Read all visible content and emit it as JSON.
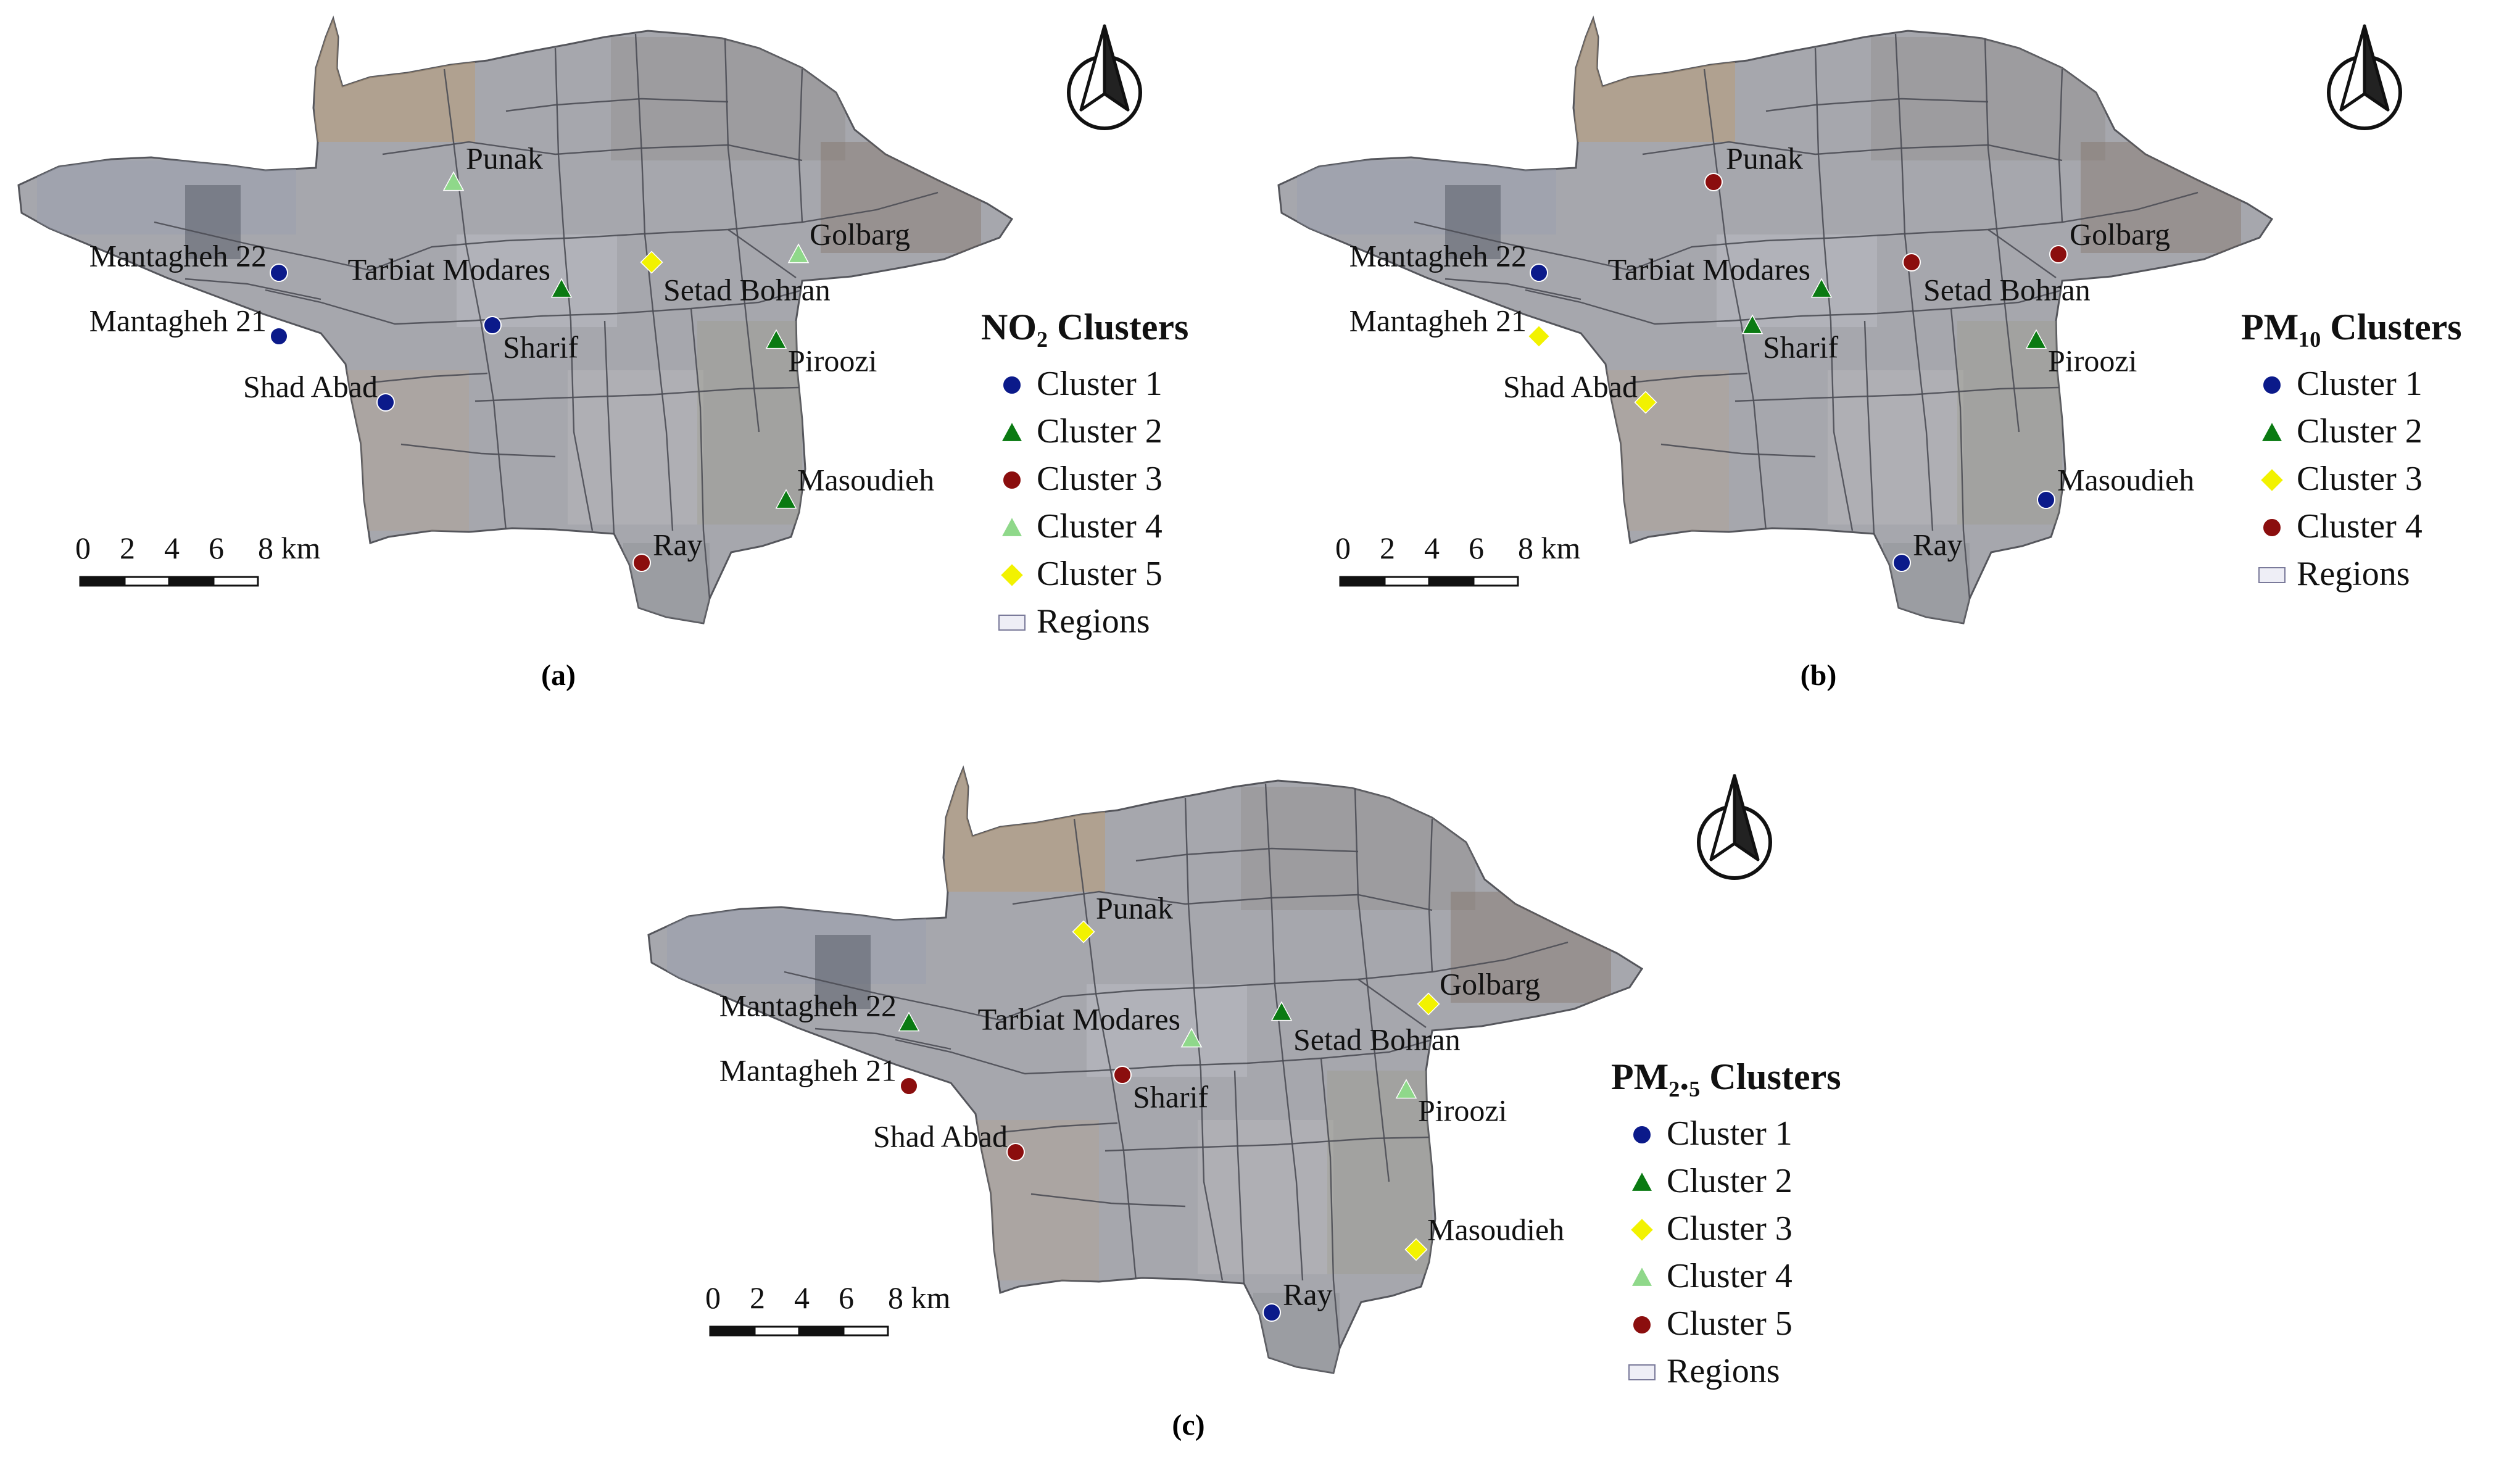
{
  "panels": [
    {
      "id": "a",
      "caption": "(a)",
      "legend_title": "NO₂ Clusters",
      "legend_items": [
        {
          "label": "Cluster 1",
          "shape": "circle",
          "color": "#0b1a8a"
        },
        {
          "label": "Cluster 2",
          "shape": "triangle",
          "color": "#0a7a12"
        },
        {
          "label": "Cluster 3",
          "shape": "circle",
          "color": "#8b0e0e"
        },
        {
          "label": "Cluster 4",
          "shape": "triangle",
          "color": "#8fd88a"
        },
        {
          "label": "Cluster 5",
          "shape": "diamond",
          "color": "#f2f200"
        },
        {
          "label": "Regions",
          "shape": "rect",
          "color": "#eeeef6"
        }
      ],
      "stations": [
        {
          "name": "Punak",
          "cluster": 4
        },
        {
          "name": "Mantagheh 22",
          "cluster": 1
        },
        {
          "name": "Tarbiat Modares",
          "cluster": 2
        },
        {
          "name": "Setad Bohran",
          "cluster": 5
        },
        {
          "name": "Golbarg",
          "cluster": 4
        },
        {
          "name": "Mantagheh 21",
          "cluster": 1
        },
        {
          "name": "Sharif",
          "cluster": 1
        },
        {
          "name": "Piroozi",
          "cluster": 2
        },
        {
          "name": "Shad Abad",
          "cluster": 1
        },
        {
          "name": "Masoudieh",
          "cluster": 2
        },
        {
          "name": "Ray",
          "cluster": 3
        }
      ],
      "scale_labels": [
        "0",
        "2",
        "4",
        "6",
        "8 km"
      ]
    },
    {
      "id": "b",
      "caption": "(b)",
      "legend_title": "PM₁₀ Clusters",
      "legend_items": [
        {
          "label": "Cluster 1",
          "shape": "circle",
          "color": "#0b1a8a"
        },
        {
          "label": "Cluster 2",
          "shape": "triangle",
          "color": "#0a7a12"
        },
        {
          "label": "Cluster 3",
          "shape": "diamond",
          "color": "#f2f200"
        },
        {
          "label": "Cluster 4",
          "shape": "circle",
          "color": "#8b0e0e"
        },
        {
          "label": "Regions",
          "shape": "rect",
          "color": "#eeeef6"
        }
      ],
      "stations": [
        {
          "name": "Punak",
          "cluster": 4
        },
        {
          "name": "Mantagheh 22",
          "cluster": 1
        },
        {
          "name": "Tarbiat Modares",
          "cluster": 2
        },
        {
          "name": "Setad Bohran",
          "cluster": 4
        },
        {
          "name": "Golbarg",
          "cluster": 4
        },
        {
          "name": "Mantagheh 21",
          "cluster": 3
        },
        {
          "name": "Sharif",
          "cluster": 2
        },
        {
          "name": "Piroozi",
          "cluster": 2
        },
        {
          "name": "Shad Abad",
          "cluster": 3
        },
        {
          "name": "Masoudieh",
          "cluster": 1
        },
        {
          "name": "Ray",
          "cluster": 1
        }
      ],
      "scale_labels": [
        "0",
        "2",
        "4",
        "6",
        "8 km"
      ]
    },
    {
      "id": "c",
      "caption": "(c)",
      "legend_title": "PM₂.₅ Clusters",
      "legend_items": [
        {
          "label": "Cluster 1",
          "shape": "circle",
          "color": "#0b1a8a"
        },
        {
          "label": "Cluster 2",
          "shape": "triangle",
          "color": "#0a7a12"
        },
        {
          "label": "Cluster 3",
          "shape": "diamond",
          "color": "#f2f200"
        },
        {
          "label": "Cluster 4",
          "shape": "triangle",
          "color": "#8fd88a"
        },
        {
          "label": "Cluster 5",
          "shape": "circle",
          "color": "#8b0e0e"
        },
        {
          "label": "Regions",
          "shape": "rect",
          "color": "#eeeef6"
        }
      ],
      "stations": [
        {
          "name": "Punak",
          "cluster": 3
        },
        {
          "name": "Mantagheh 22",
          "cluster": 2
        },
        {
          "name": "Tarbiat Modares",
          "cluster": 4
        },
        {
          "name": "Setad Bohran",
          "cluster": 2
        },
        {
          "name": "Golbarg",
          "cluster": 3
        },
        {
          "name": "Mantagheh 21",
          "cluster": 5
        },
        {
          "name": "Sharif",
          "cluster": 5
        },
        {
          "name": "Piroozi",
          "cluster": 4
        },
        {
          "name": "Shad Abad",
          "cluster": 5
        },
        {
          "name": "Masoudieh",
          "cluster": 3
        },
        {
          "name": "Ray",
          "cluster": 1
        }
      ],
      "scale_labels": [
        "0",
        "2",
        "4",
        "6",
        "8 km"
      ]
    }
  ]
}
